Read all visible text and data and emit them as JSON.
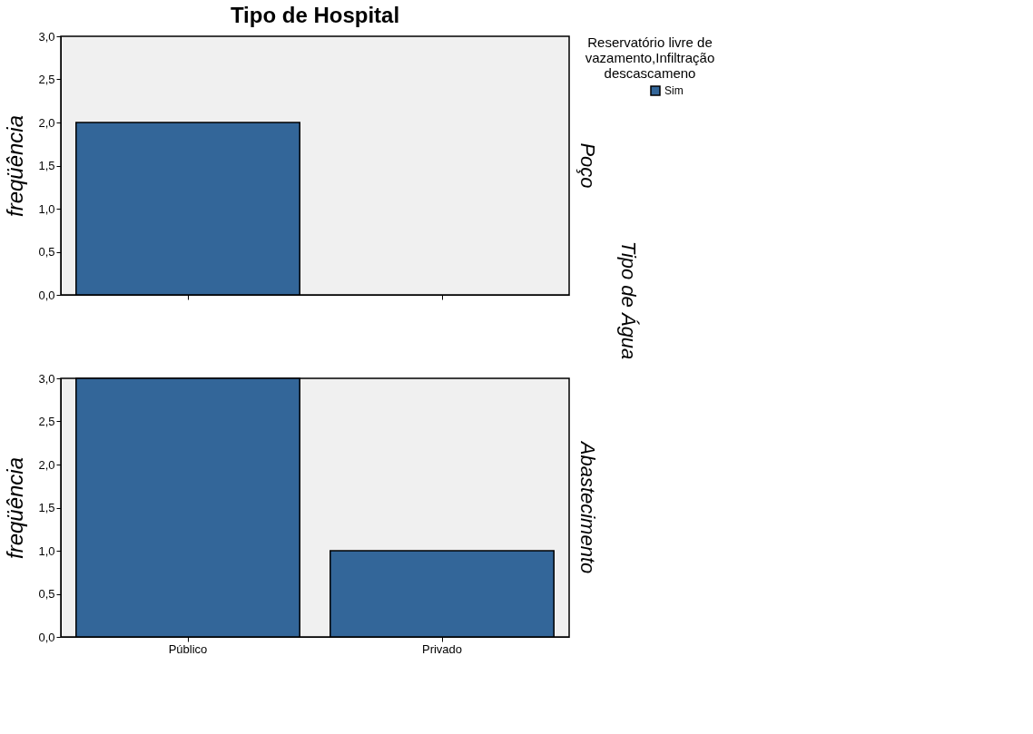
{
  "chart_data": [
    {
      "type": "bar",
      "title": "Tipo de Hospital",
      "subtitle": "Poço",
      "ylabel": "freqüência",
      "legend_title": "Reservatório livre de vazamento,Infiltração descascameno",
      "legend": "top right",
      "annotations": [
        "Tipo de Água"
      ],
      "categories": [
        "Público",
        "Privado"
      ],
      "series": [
        {
          "name": "Sim",
          "color": "#336699",
          "values": [
            2,
            null
          ]
        }
      ],
      "ylim": [
        0,
        3
      ],
      "yticks": [
        {
          "value": 0,
          "label": "0,0"
        },
        {
          "value": 0.5,
          "label": "0,5"
        },
        {
          "value": 1,
          "label": "1,0"
        },
        {
          "value": 1.5,
          "label": "1,5"
        },
        {
          "value": 2,
          "label": "2,0"
        },
        {
          "value": 2.5,
          "label": "2,5"
        },
        {
          "value": 3,
          "label": "3,0"
        }
      ],
      "tick_labels": "y"
    },
    {
      "type": "bar",
      "subtitle": "Abastecimento",
      "ylabel": "freqüência",
      "categories": [
        "Público",
        "Privado"
      ],
      "series": [
        {
          "color": "#336699",
          "values": [
            3,
            1
          ]
        }
      ],
      "ylim": [
        0,
        3
      ],
      "yticks": [
        {
          "value": 0,
          "label": "0,0"
        },
        {
          "value": 0.5,
          "label": "0,5"
        },
        {
          "value": 1,
          "label": "1,0"
        },
        {
          "value": 1.5,
          "label": "1,5"
        },
        {
          "value": 2,
          "label": "2,0"
        },
        {
          "value": 2.5,
          "label": "2,5"
        },
        {
          "value": 3,
          "label": "3,0"
        }
      ]
    }
  ]
}
